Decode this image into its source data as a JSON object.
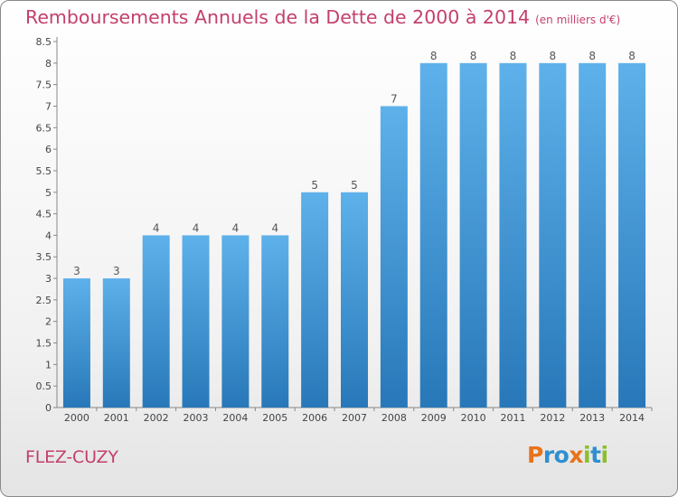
{
  "chart_data": {
    "type": "bar",
    "title": "Remboursements Annuels de la Dette de 2000 à 2014",
    "unit_label": "(en milliers d'€)",
    "categories": [
      "2000",
      "2001",
      "2002",
      "2003",
      "2004",
      "2005",
      "2006",
      "2007",
      "2008",
      "2009",
      "2010",
      "2011",
      "2012",
      "2013",
      "2014"
    ],
    "values": [
      3,
      3,
      4,
      4,
      4,
      4,
      5,
      5,
      7,
      8,
      8,
      8,
      8,
      8,
      8
    ],
    "value_labels": [
      "3",
      "3",
      "4",
      "4",
      "4",
      "4",
      "5",
      "5",
      "7",
      "8",
      "8",
      "8",
      "8",
      "8",
      "8"
    ],
    "ylim": [
      0,
      8.5
    ],
    "yticks": [
      0,
      0.5,
      1,
      1.5,
      2,
      2.5,
      3,
      3.5,
      4,
      4.5,
      5,
      5.5,
      6,
      6.5,
      7,
      7.5,
      8,
      8.5
    ],
    "ytick_labels": [
      "0",
      "0.5",
      "1",
      "1.5",
      "2",
      "2.5",
      "3",
      "3.5",
      "4",
      "4.5",
      "5",
      "5.5",
      "6",
      "6.5",
      "7",
      "7.5",
      "8",
      "8.5"
    ],
    "grid": false,
    "bar_color_top": "#5eb1ea",
    "bar_color_bottom": "#2878b9",
    "xlabel": "",
    "ylabel": ""
  },
  "footer": {
    "town": "FLEZ-CUZY",
    "logo_text": "Proxiti"
  },
  "colors": {
    "title": "#c4406a",
    "logo_letters": [
      "#e8731c",
      "#2f8fd0",
      "#2f8fd0",
      "#e8731c",
      "#8cbf2a",
      "#2f8fd0",
      "#8cbf2a"
    ]
  }
}
